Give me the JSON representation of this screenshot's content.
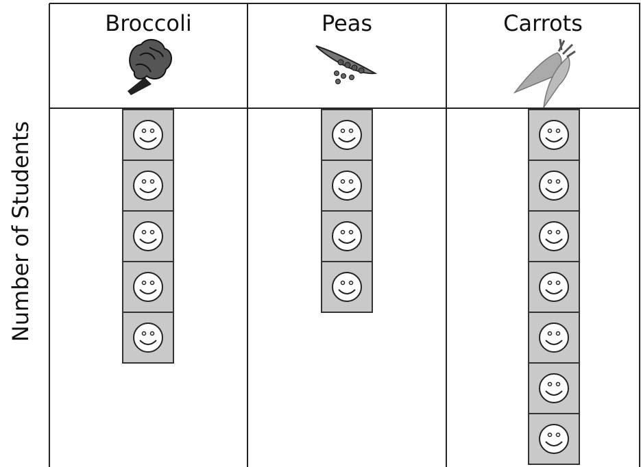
{
  "chart_data": {
    "type": "pictograph",
    "y_label": "Number of Students",
    "categories": [
      "Broccoli",
      "Peas",
      "Carrots"
    ],
    "values": [
      5,
      4,
      7
    ]
  }
}
